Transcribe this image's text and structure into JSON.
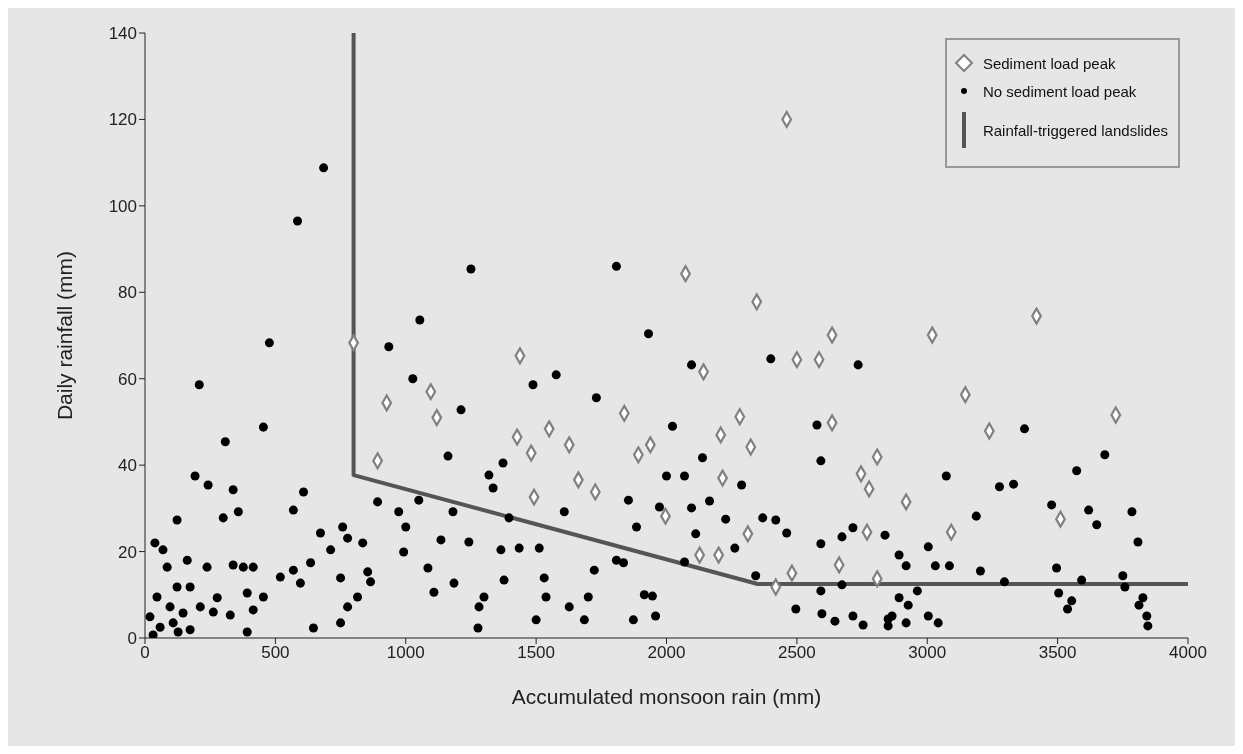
{
  "chart_data": {
    "type": "scatter",
    "xlabel": "Accumulated monsoon rain (mm)",
    "ylabel": "Daily rainfall (mm)",
    "xlim": [
      0,
      4000
    ],
    "ylim": [
      0,
      140
    ],
    "xticks": [
      0,
      500,
      1000,
      1500,
      2000,
      2500,
      3000,
      3500,
      4000
    ],
    "yticks": [
      0,
      20,
      40,
      60,
      80,
      100,
      120,
      140
    ],
    "legend": "top right",
    "series": [
      {
        "name": "Sediment load peak",
        "marker": "diamond",
        "color": "#808080",
        "x": [
          800,
          1438,
          927,
          1096,
          1119,
          1838,
          892,
          1427,
          1550,
          1481,
          1627,
          1662,
          1727,
          1492,
          1892,
          1938,
          2142,
          2500,
          2585,
          2635,
          3019,
          3146,
          3238,
          3723,
          2281,
          2208,
          2323,
          2635,
          2215,
          1996,
          2808,
          2746,
          2777,
          2919,
          2312,
          2769,
          3092,
          3511,
          2127,
          2200,
          2662,
          2481,
          2419,
          2808,
          2461,
          2073,
          2346,
          3419
        ],
        "values": [
          68.3,
          65.3,
          54.4,
          57,
          51,
          52,
          41,
          46.5,
          48.4,
          42.8,
          44.7,
          36.6,
          33.8,
          32.6,
          42.4,
          44.7,
          61.6,
          64.4,
          64.4,
          70.1,
          70.1,
          56.3,
          47.9,
          51.6,
          51.2,
          47,
          44.2,
          49.8,
          37,
          28.2,
          41.9,
          38,
          34.5,
          31.5,
          24.1,
          24.5,
          24.5,
          27.5,
          19.2,
          19.2,
          16.9,
          15,
          11.8,
          13.7,
          120,
          84.3,
          77.8,
          74.5
        ]
      },
      {
        "name": "No sediment load peak",
        "marker": "circle",
        "color": "#000000",
        "x": [
          685,
          585,
          1250,
          1808,
          1054,
          1931,
          477,
          208,
          454,
          308,
          1027,
          935,
          1577,
          1488,
          1731,
          1212,
          1162,
          192,
          242,
          338,
          608,
          569,
          123,
          300,
          358,
          1319,
          1373,
          973,
          1050,
          892,
          1181,
          1335,
          1396,
          1000,
          1135,
          1242,
          1435,
          1512,
          1608,
          1854,
          1885,
          1808,
          1723,
          1700,
          1627,
          1538,
          1531,
          1377,
          1300,
          1281,
          1185,
          1108,
          1085,
          992,
          835,
          758,
          777,
          673,
          712,
          635,
          569,
          519,
          596,
          750,
          815,
          777,
          750,
          854,
          865,
          415,
          377,
          338,
          238,
          162,
          85,
          38,
          69,
          123,
          173,
          277,
          392,
          454,
          415,
          327,
          262,
          212,
          146,
          96,
          46,
          19,
          58,
          108,
          127,
          173,
          31,
          392,
          646,
          1277,
          1500,
          1685,
          1873,
          1915,
          1835,
          1365,
          2400,
          2735,
          2096,
          2023,
          2577,
          2592,
          2138,
          2000,
          2069,
          2288,
          3073,
          3277,
          3331,
          3373,
          3681,
          3573,
          3477,
          3619,
          3650,
          3785,
          3808,
          3188,
          2838,
          2715,
          2461,
          2419,
          2369,
          2227,
          2165,
          2096,
          1973,
          2112,
          2592,
          2673,
          3004,
          2892,
          2919,
          3031,
          3085,
          3204,
          3496,
          3296,
          3592,
          3750,
          2069,
          2262,
          2342,
          2592,
          2673,
          1946,
          1958,
          2496,
          2596,
          2646,
          2715,
          2754,
          2850,
          2865,
          2919,
          2927,
          2962,
          2892,
          3004,
          3042,
          2850,
          3554,
          3538,
          3504,
          3812,
          3842,
          3846,
          3827,
          3758
        ],
        "values": [
          108.8,
          96.5,
          85.4,
          86,
          73.6,
          70.4,
          68.3,
          58.6,
          48.8,
          45.4,
          60,
          67.4,
          60.9,
          58.6,
          55.6,
          52.8,
          42.1,
          37.5,
          35.4,
          34.3,
          33.8,
          29.6,
          27.3,
          27.8,
          29.2,
          37.7,
          40.5,
          29.2,
          31.9,
          31.5,
          29.2,
          34.7,
          27.8,
          25.7,
          22.7,
          22.2,
          20.8,
          20.8,
          29.2,
          31.9,
          25.7,
          18,
          15.7,
          9.5,
          7.2,
          9.5,
          13.9,
          13.4,
          9.5,
          7.2,
          12.7,
          10.6,
          16.2,
          19.9,
          22,
          25.7,
          23.1,
          24.3,
          20.4,
          17.4,
          15.7,
          14.1,
          12.7,
          13.9,
          9.5,
          7.2,
          3.5,
          15.3,
          13,
          16.4,
          16.4,
          16.9,
          16.4,
          18,
          16.4,
          22,
          20.4,
          11.8,
          11.8,
          9.3,
          10.4,
          9.5,
          6.5,
          5.3,
          6,
          7.2,
          5.8,
          7.2,
          9.5,
          4.9,
          2.5,
          3.5,
          1.4,
          1.9,
          0.7,
          1.4,
          2.3,
          2.3,
          4.2,
          4.2,
          4.2,
          10,
          17.4,
          20.4,
          64.6,
          63.2,
          63.2,
          49,
          49.3,
          41,
          41.7,
          37.5,
          37.5,
          35.4,
          37.5,
          35,
          35.6,
          48.4,
          42.4,
          38.7,
          30.8,
          29.6,
          26.2,
          29.2,
          22.2,
          28.2,
          23.8,
          25.5,
          24.3,
          27.3,
          27.8,
          27.5,
          31.7,
          30.1,
          30.3,
          24.1,
          21.8,
          23.4,
          21.1,
          19.2,
          16.7,
          16.7,
          16.7,
          15.5,
          16.2,
          13,
          13.4,
          14.4,
          17.6,
          20.8,
          14.4,
          10.9,
          12.3,
          9.7,
          5.1,
          6.7,
          5.6,
          3.9,
          5.1,
          3,
          2.8,
          5.1,
          3.5,
          7.6,
          10.9,
          9.3,
          5.1,
          3.5,
          4.4,
          8.6,
          6.7,
          10.4,
          7.6,
          5.1,
          2.8,
          9.3,
          11.8
        ]
      },
      {
        "name": "Rainfall-triggered landslides",
        "type": "line",
        "marker": "none",
        "color": "#555555",
        "x": [
          800,
          800,
          2350,
          4000
        ],
        "values": [
          140,
          37.7,
          12.5,
          12.5
        ]
      }
    ]
  }
}
